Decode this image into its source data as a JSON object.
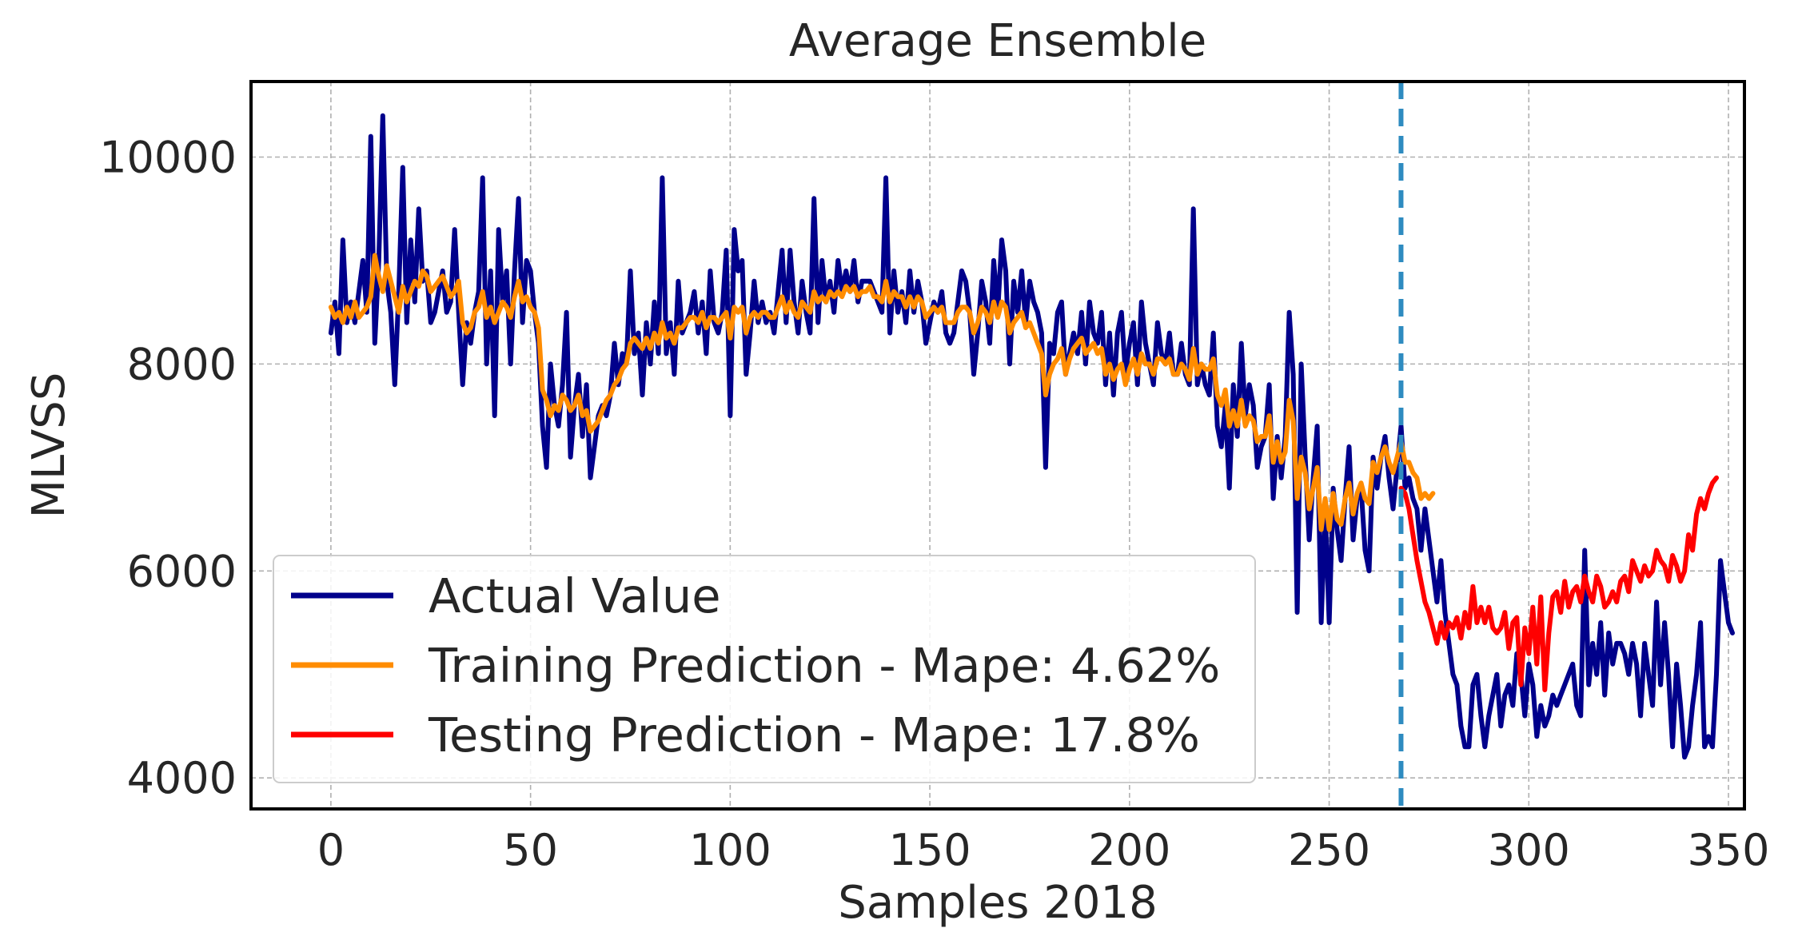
{
  "chart_data": {
    "type": "line",
    "title": "Average Ensemble",
    "xlabel": "Samples 2018",
    "ylabel": "MLVSS",
    "xlim": [
      -20,
      354
    ],
    "ylim": [
      3700,
      10730
    ],
    "xticks": [
      0,
      50,
      100,
      150,
      200,
      250,
      300,
      350
    ],
    "xtick_labels": [
      "0",
      "50",
      "100",
      "150",
      "200",
      "250",
      "300",
      "350"
    ],
    "yticks": [
      4000,
      6000,
      8000,
      10000
    ],
    "ytick_labels": [
      "4000",
      "6000",
      "8000",
      "10000"
    ],
    "grid": true,
    "legend_position": "lower-left",
    "split_marker": {
      "x": 268,
      "style": "dashed",
      "color": "#2e8bc0"
    },
    "series": [
      {
        "name": "Actual Value",
        "color": "#00008b",
        "x_start": 0,
        "values": [
          8300,
          8600,
          8100,
          9200,
          8400,
          8600,
          8400,
          8700,
          9000,
          8500,
          10200,
          8200,
          9000,
          10400,
          8800,
          8500,
          7800,
          8700,
          9900,
          8400,
          9200,
          8600,
          9500,
          8800,
          8900,
          8400,
          8500,
          8700,
          8900,
          8500,
          8600,
          9300,
          8500,
          7800,
          8400,
          8200,
          8500,
          8700,
          9800,
          8000,
          8900,
          7500,
          9300,
          8600,
          8900,
          8000,
          8900,
          9600,
          8400,
          9000,
          8900,
          8500,
          8200,
          7400,
          7000,
          8000,
          7600,
          7400,
          7800,
          8500,
          7100,
          7600,
          7900,
          7300,
          7800,
          6900,
          7200,
          7500,
          7600,
          7500,
          7700,
          8200,
          7800,
          8100,
          8000,
          8900,
          8100,
          8300,
          7700,
          8400,
          8000,
          8600,
          8100,
          9800,
          8100,
          8400,
          7900,
          8800,
          8300,
          8400,
          8500,
          8700,
          8300,
          8600,
          8100,
          8900,
          8400,
          8300,
          8500,
          9100,
          7500,
          9300,
          8900,
          9000,
          7900,
          8300,
          8800,
          8400,
          8600,
          8400,
          8500,
          8300,
          8700,
          9100,
          8400,
          9100,
          8600,
          8300,
          8800,
          8500,
          8300,
          9600,
          8400,
          9000,
          8600,
          8800,
          8500,
          9000,
          8700,
          8900,
          8700,
          9000,
          8600,
          8800,
          8800,
          8800,
          8700,
          8600,
          8500,
          9800,
          8300,
          8900,
          8500,
          8700,
          8400,
          8900,
          8500,
          8800,
          8600,
          8200,
          8400,
          8600,
          8500,
          8700,
          8300,
          8200,
          8300,
          8600,
          8900,
          8800,
          8500,
          7900,
          8300,
          8800,
          8600,
          8200,
          9000,
          8500,
          9200,
          8900,
          8000,
          8800,
          8500,
          8900,
          8400,
          8800,
          8600,
          8500,
          8300,
          7000,
          8200,
          8100,
          8500,
          8600,
          7900,
          8100,
          8300,
          8100,
          8500,
          8000,
          8600,
          8300,
          8200,
          8500,
          7800,
          8300,
          7700,
          8300,
          8500,
          7900,
          8200,
          8400,
          7800,
          8600,
          8200,
          8000,
          7800,
          8400,
          8100,
          8000,
          8300,
          7900,
          7900,
          8200,
          7900,
          7800,
          9500,
          7800,
          8000,
          7800,
          7700,
          8300,
          7400,
          7200,
          7600,
          6800,
          7800,
          7300,
          8200,
          7500,
          7800,
          7600,
          7000,
          7200,
          7300,
          7800,
          6700,
          7300,
          6900,
          7300,
          8500,
          7900,
          5600,
          8000,
          7100,
          6300,
          6900,
          7400,
          5500,
          6600,
          5500,
          6800,
          6400,
          6100,
          6700,
          7200,
          6300,
          6700,
          6800,
          6200,
          6000,
          7100,
          6800,
          7100,
          7300,
          6900,
          6600,
          7000,
          7400,
          6800,
          6900,
          6700,
          6600,
          6200,
          6600,
          6300,
          6000,
          5700,
          6100,
          5600,
          5300,
          5000,
          4900,
          4500,
          4300,
          4300,
          4900,
          5000,
          4600,
          4300,
          4600,
          4800,
          5000,
          4500,
          4800,
          4900,
          4700,
          5200,
          5000,
          4600,
          5100,
          4900,
          4400,
          4700,
          4500,
          4600,
          4800,
          4700,
          4800,
          4900,
          5000,
          5100,
          4700,
          4600,
          6200,
          4900,
          5300,
          5000,
          5500,
          4800,
          5400,
          5100,
          5300,
          5300,
          5200,
          5000,
          5300,
          5100,
          4600,
          5300,
          5000,
          4700,
          5700,
          4900,
          5500,
          5000,
          4300,
          5100,
          4700,
          4200,
          4300,
          4700,
          5000,
          5500,
          4300,
          4400,
          4300,
          5000,
          6100,
          5800,
          5500,
          5400
        ]
      },
      {
        "name": "Training Prediction - Mape: 4.62%",
        "color": "#ff8c00",
        "x_start": 0,
        "values": [
          8550,
          8450,
          8500,
          8400,
          8550,
          8450,
          8600,
          8450,
          8500,
          8550,
          8650,
          9050,
          8850,
          8700,
          8950,
          8800,
          8650,
          8500,
          8750,
          8600,
          8700,
          8800,
          8750,
          8900,
          8850,
          8700,
          8750,
          8800,
          8850,
          8750,
          8650,
          8700,
          8800,
          8400,
          8300,
          8350,
          8500,
          8550,
          8700,
          8450,
          8550,
          8400,
          8500,
          8600,
          8550,
          8450,
          8650,
          8800,
          8600,
          8650,
          8550,
          8500,
          8350,
          7750,
          7650,
          7500,
          7600,
          7550,
          7700,
          7650,
          7550,
          7600,
          7700,
          7500,
          7550,
          7350,
          7400,
          7450,
          7550,
          7650,
          7700,
          7800,
          7850,
          7950,
          8000,
          8200,
          8250,
          8200,
          8150,
          8250,
          8150,
          8300,
          8200,
          8400,
          8250,
          8300,
          8200,
          8350,
          8350,
          8400,
          8450,
          8450,
          8400,
          8500,
          8350,
          8450,
          8450,
          8400,
          8450,
          8500,
          8250,
          8550,
          8500,
          8550,
          8300,
          8450,
          8500,
          8450,
          8500,
          8500,
          8450,
          8450,
          8550,
          8650,
          8500,
          8600,
          8500,
          8450,
          8600,
          8550,
          8500,
          8700,
          8600,
          8650,
          8600,
          8700,
          8650,
          8700,
          8650,
          8750,
          8700,
          8750,
          8650,
          8700,
          8700,
          8750,
          8650,
          8650,
          8600,
          8800,
          8600,
          8700,
          8650,
          8650,
          8550,
          8650,
          8550,
          8650,
          8600,
          8450,
          8500,
          8550,
          8500,
          8550,
          8400,
          8400,
          8400,
          8500,
          8550,
          8550,
          8500,
          8300,
          8400,
          8550,
          8500,
          8400,
          8600,
          8450,
          8600,
          8550,
          8300,
          8400,
          8450,
          8500,
          8350,
          8400,
          8300,
          8200,
          8100,
          7700,
          7900,
          8000,
          8050,
          8150,
          7900,
          8050,
          8150,
          8200,
          8250,
          8100,
          8150,
          8200,
          8100,
          8150,
          7900,
          8000,
          7850,
          7950,
          8000,
          7800,
          7950,
          8050,
          7900,
          8100,
          8000,
          8000,
          7900,
          8050,
          8050,
          8000,
          8050,
          7900,
          7900,
          8000,
          7950,
          7850,
          8150,
          7900,
          8000,
          7950,
          7950,
          8050,
          7700,
          7600,
          7750,
          7400,
          7550,
          7400,
          7650,
          7400,
          7500,
          7450,
          7250,
          7300,
          7300,
          7500,
          7050,
          7250,
          7050,
          7150,
          7650,
          7450,
          6700,
          7100,
          6950,
          6600,
          6800,
          7000,
          6400,
          6700,
          6400,
          6750,
          6500,
          6450,
          6700,
          6850,
          6550,
          6750,
          6850,
          6700,
          6650,
          7050,
          6950,
          7100,
          7200,
          7050,
          6950,
          7100,
          7250,
          7050,
          7050,
          6950,
          6900,
          6700,
          6750,
          6700,
          6750
        ]
      },
      {
        "name": "Testing Prediction - Mape: 17.8%",
        "color": "#ff0000",
        "x_start": 268,
        "values": [
          6800,
          6750,
          6600,
          6350,
          6100,
          5900,
          5700,
          5600,
          5450,
          5300,
          5500,
          5350,
          5500,
          5450,
          5550,
          5350,
          5600,
          5450,
          5850,
          5500,
          5650,
          5500,
          5650,
          5450,
          5400,
          5450,
          5600,
          5250,
          5500,
          5550,
          4900,
          5450,
          5200,
          5650,
          5100,
          5750,
          4850,
          5400,
          5750,
          5800,
          5600,
          5900,
          5650,
          5800,
          5850,
          5700,
          5950,
          5800,
          5700,
          5950,
          5850,
          5650,
          5700,
          5800,
          5700,
          5900,
          5950,
          5800,
          6100,
          6000,
          5900,
          6050,
          5950,
          6000,
          6200,
          6100,
          6050,
          5900,
          6150,
          6050,
          5900,
          6000,
          6350,
          6200,
          6550,
          6700,
          6600,
          6750,
          6850,
          6900
        ]
      }
    ]
  }
}
